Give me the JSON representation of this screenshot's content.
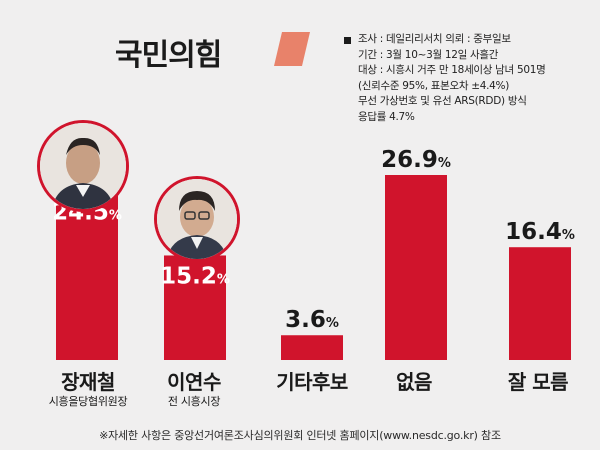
{
  "header": {
    "title": "국민의힘"
  },
  "survey_info": {
    "lines": [
      "조사 : 데일리리서치 의뢰 : 중부일보",
      "기간 : 3월 10~3월 12일 사흘간",
      "대상 : 시흥시 거주 만 18세이상 남녀 501명",
      "(신뢰수준 95%, 표본오차 ±4.4%)",
      "무선 가상번호 및 유선 ARS(RDD) 방식",
      "응답률 4.7%"
    ]
  },
  "colors": {
    "bar": "#d0142c",
    "background": "#f0efef",
    "accent_mark": "#e8826a"
  },
  "chart_data": {
    "type": "bar",
    "categories": [
      "장재철",
      "이연수",
      "기타후보",
      "없음",
      "잘 모름"
    ],
    "subtitles": [
      "시흥을당협위원장",
      "전 시흥시장",
      "",
      "",
      ""
    ],
    "values": [
      24.5,
      15.2,
      3.6,
      26.9,
      16.4
    ],
    "value_labels": [
      "24.5",
      "15.2",
      "3.6",
      "26.9",
      "16.4"
    ],
    "unit": "%",
    "ylim": [
      0,
      30
    ],
    "grid": false,
    "title": "국민의힘"
  },
  "footnote": "※자세한 사항은 중앙선거여론조사심의위원회 인터넷 홈페이지(www.nesdc.go.kr) 참조"
}
